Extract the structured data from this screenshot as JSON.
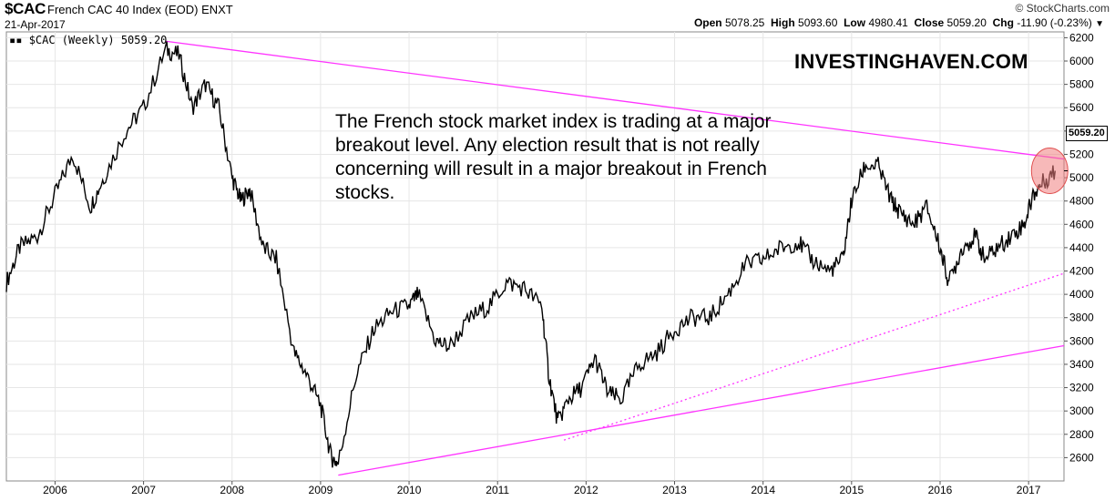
{
  "header": {
    "ticker": "$CAC",
    "full_name": "French CAC 40 Index (EOD)",
    "exchange": "ENXT",
    "date": "21-Apr-2017",
    "credit": "© StockCharts.com",
    "ohlc": {
      "open_label": "Open",
      "open": "5078.25",
      "high_label": "High",
      "high": "5093.60",
      "low_label": "Low",
      "low": "4980.41",
      "close_label": "Close",
      "close": "5059.20",
      "chg_label": "Chg",
      "chg": "-11.90 (-0.23%)"
    }
  },
  "legend_text": "$CAC (Weekly) 5059.20",
  "brand": "INVESTINGHAVEN.COM",
  "annotation": "The French stock market index is trading at a major breakout level. Any election result that is not really concerning will result in a major breakout in French stocks.",
  "last_value_label": "5059.20",
  "colors": {
    "trendline": "#ff33ff",
    "price": "#000000",
    "highlight": "#f08080"
  },
  "chart_data": {
    "type": "line",
    "title": "$CAC French CAC 40 Index (EOD) ENXT",
    "ylim": [
      2400,
      6250
    ],
    "xlim": [
      2005.45,
      2017.4
    ],
    "y_ticks": [
      2600,
      2800,
      3000,
      3200,
      3400,
      3600,
      3800,
      4000,
      4200,
      4400,
      4600,
      4800,
      5000,
      5200,
      5400,
      5600,
      5800,
      6000,
      6200
    ],
    "x_ticks": [
      {
        "label": "2006",
        "x": 2006.0
      },
      {
        "label": "2007",
        "x": 2007.0
      },
      {
        "label": "2008",
        "x": 2008.0
      },
      {
        "label": "2009",
        "x": 2009.0
      },
      {
        "label": "2010",
        "x": 2010.0
      },
      {
        "label": "2011",
        "x": 2011.0
      },
      {
        "label": "2012",
        "x": 2012.0
      },
      {
        "label": "2013",
        "x": 2013.0
      },
      {
        "label": "2014",
        "x": 2014.0
      },
      {
        "label": "2015",
        "x": 2015.0
      },
      {
        "label": "2016",
        "x": 2016.0
      },
      {
        "label": "2017",
        "x": 2017.0
      }
    ],
    "grid": true,
    "series": [
      {
        "name": "$CAC (Weekly)",
        "x": [
          2005.45,
          2005.6,
          2005.8,
          2006.0,
          2006.2,
          2006.4,
          2006.55,
          2006.8,
          2007.0,
          2007.25,
          2007.4,
          2007.55,
          2007.7,
          2007.85,
          2008.0,
          2008.1,
          2008.2,
          2008.35,
          2008.5,
          2008.7,
          2008.85,
          2009.0,
          2009.12,
          2009.2,
          2009.4,
          2009.6,
          2009.8,
          2010.0,
          2010.1,
          2010.3,
          2010.45,
          2010.7,
          2010.9,
          2011.1,
          2011.3,
          2011.5,
          2011.58,
          2011.68,
          2011.8,
          2011.95,
          2012.1,
          2012.25,
          2012.4,
          2012.6,
          2012.8,
          2013.0,
          2013.2,
          2013.4,
          2013.6,
          2013.8,
          2014.0,
          2014.2,
          2014.4,
          2014.55,
          2014.75,
          2014.9,
          2015.0,
          2015.15,
          2015.3,
          2015.45,
          2015.55,
          2015.7,
          2015.85,
          2016.0,
          2016.1,
          2016.25,
          2016.4,
          2016.5,
          2016.65,
          2016.8,
          2016.95,
          2017.05,
          2017.15,
          2017.3
        ],
        "values": [
          4100,
          4400,
          4500,
          4850,
          5200,
          4750,
          5000,
          5400,
          5600,
          6100,
          6050,
          5600,
          5800,
          5600,
          5000,
          4800,
          4900,
          4400,
          4300,
          3500,
          3300,
          3050,
          2600,
          2550,
          3300,
          3700,
          3850,
          3900,
          4000,
          3600,
          3550,
          3800,
          3900,
          4100,
          4050,
          3900,
          3300,
          2900,
          3100,
          3200,
          3450,
          3150,
          3100,
          3400,
          3500,
          3700,
          3800,
          3800,
          4000,
          4250,
          4300,
          4400,
          4450,
          4300,
          4200,
          4300,
          4800,
          5100,
          5100,
          4800,
          4700,
          4600,
          4750,
          4400,
          4100,
          4400,
          4500,
          4300,
          4400,
          4500,
          4600,
          4850,
          4950,
          5059.2
        ]
      }
    ],
    "trendlines": [
      {
        "style": "solid",
        "x": [
          2007.25,
          2017.4
        ],
        "y": [
          6170,
          5160
        ]
      },
      {
        "style": "solid",
        "x": [
          2009.2,
          2017.4
        ],
        "y": [
          2450,
          3560
        ]
      },
      {
        "style": "dotted",
        "x": [
          2011.75,
          2017.4
        ],
        "y": [
          2750,
          4180
        ]
      }
    ]
  }
}
